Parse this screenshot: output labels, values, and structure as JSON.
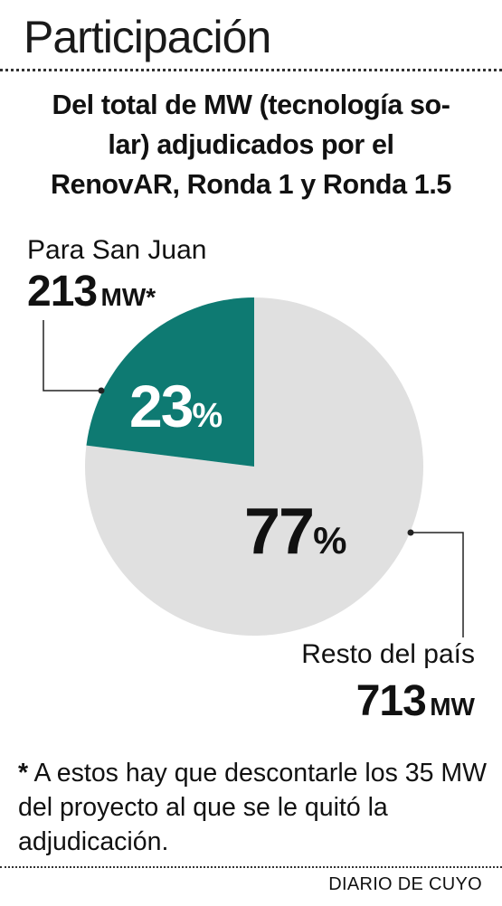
{
  "title": "Participación",
  "subtitle_lines": [
    "Del total de MW (tecnología so-",
    "lar) adjudicados por el",
    "RenovAR, Ronda 1 y Ronda 1.5"
  ],
  "chart_data": {
    "type": "pie",
    "title": "Participación",
    "subtitle": "Del total de MW (tecnología solar) adjudicados por el RenovAR, Ronda 1 y Ronda 1.5",
    "slices": [
      {
        "label": "Para San Juan",
        "value": 213,
        "unit": "MW",
        "note": "*",
        "percent": 23,
        "color": "#0e7a72"
      },
      {
        "label": "Resto del país",
        "value": 713,
        "unit": "MW",
        "percent": 77,
        "color": "#e0e0e0"
      }
    ]
  },
  "labels": {
    "san_juan": {
      "name": "Para San Juan",
      "value": "213",
      "unit": "MW*"
    },
    "resto": {
      "name": "Resto del país",
      "value": "713",
      "unit": "MW"
    }
  },
  "percent_labels": {
    "san_juan": {
      "number": "23",
      "sign": "%"
    },
    "resto": {
      "number": "77",
      "sign": "%"
    }
  },
  "footnote": {
    "asterisk": "*",
    "text": " A estos hay que descontarle los 35 MW del proyecto al que se le quitó la adjudicación."
  },
  "source": "DIARIO DE CUYO",
  "colors": {
    "accent": "#0e7a72",
    "rest": "#e0e0e0",
    "leader": "#222222"
  }
}
